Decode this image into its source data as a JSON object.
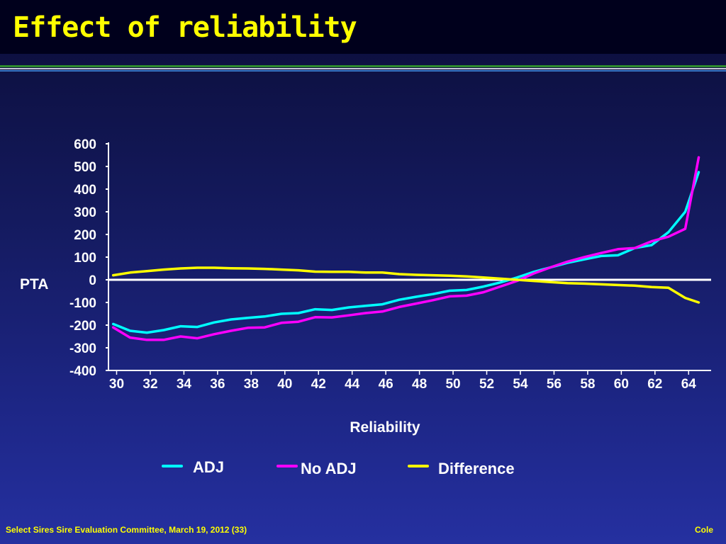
{
  "slide": {
    "title": "Effect of reliability",
    "footer_left": "Select Sires Sire Evaluation Committee, March 19, 2012 (33)",
    "footer_right": "Cole"
  },
  "colors": {
    "title": "#ffff00",
    "axis": "#ffffff",
    "adj": "#00ffff",
    "no_adj": "#ff00ff",
    "difference": "#ffff00"
  },
  "chart_data": {
    "type": "line",
    "xlabel": "Reliability",
    "ylabel": "PTA",
    "xticks": [
      30,
      32,
      34,
      36,
      38,
      40,
      42,
      44,
      46,
      48,
      50,
      52,
      54,
      56,
      58,
      60,
      62,
      64
    ],
    "yticks": [
      600,
      500,
      400,
      300,
      200,
      100,
      0,
      -100,
      -200,
      -300,
      -400
    ],
    "ylim": [
      -400,
      600
    ],
    "xlim": [
      29.6,
      65
    ],
    "grid": false,
    "legend_position": "bottom",
    "x": [
      29.8,
      30.8,
      31.8,
      32.8,
      33.8,
      34.8,
      35.8,
      36.8,
      37.8,
      38.8,
      39.8,
      40.8,
      41.8,
      42.8,
      43.8,
      44.8,
      45.8,
      46.8,
      47.8,
      48.8,
      49.8,
      50.8,
      51.8,
      52.8,
      53.8,
      54.8,
      55.8,
      56.8,
      57.8,
      58.8,
      59.8,
      60.8,
      61.8,
      62.8,
      63.8,
      64.6
    ],
    "series": [
      {
        "name": "ADJ",
        "color": "#00ffff",
        "values": [
          -195,
          -225,
          -233,
          -222,
          -205,
          -208,
          -188,
          -175,
          -168,
          -162,
          -150,
          -147,
          -130,
          -133,
          -122,
          -115,
          -108,
          -88,
          -75,
          -63,
          -48,
          -45,
          -30,
          -12,
          10,
          35,
          55,
          75,
          90,
          105,
          108,
          140,
          153,
          210,
          300,
          475
        ]
      },
      {
        "name": "No ADJ",
        "color": "#ff00ff",
        "values": [
          -210,
          -255,
          -265,
          -265,
          -250,
          -258,
          -240,
          -225,
          -212,
          -210,
          -190,
          -185,
          -165,
          -166,
          -157,
          -147,
          -140,
          -120,
          -105,
          -90,
          -73,
          -70,
          -55,
          -30,
          -5,
          28,
          55,
          80,
          100,
          118,
          135,
          140,
          170,
          190,
          225,
          540
        ]
      },
      {
        "name": "Difference",
        "color": "#ffff00",
        "values": [
          20,
          32,
          38,
          45,
          50,
          53,
          53,
          51,
          50,
          48,
          45,
          42,
          36,
          35,
          35,
          32,
          32,
          25,
          22,
          20,
          18,
          15,
          10,
          5,
          0,
          -5,
          -10,
          -15,
          -17,
          -20,
          -23,
          -26,
          -32,
          -35,
          -80,
          -100
        ]
      }
    ]
  }
}
